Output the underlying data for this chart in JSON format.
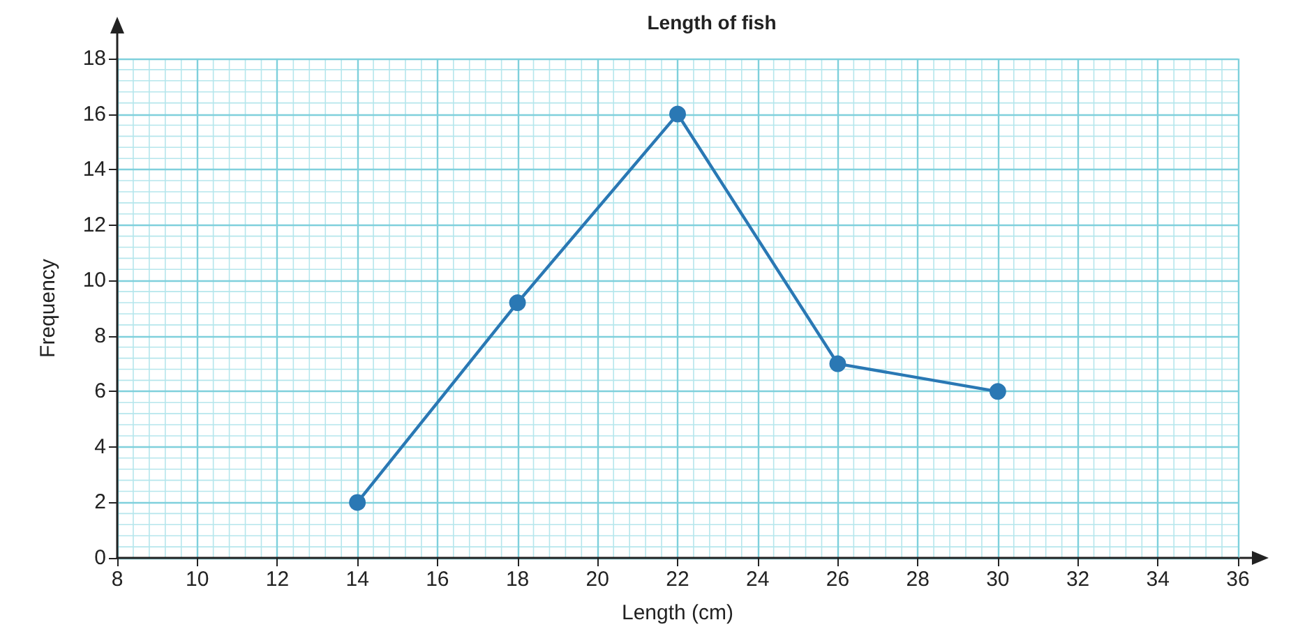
{
  "chart_data": {
    "type": "line",
    "title": "Length of fish",
    "xlabel": "Length (cm)",
    "ylabel": "Frequency",
    "x": [
      14,
      18,
      22,
      26,
      30
    ],
    "series": [
      {
        "color": "#2a78b4",
        "values": [
          2,
          9.2,
          16,
          7,
          6
        ]
      }
    ],
    "xlim": [
      8,
      36
    ],
    "xticks": [
      8,
      {
        "value": 8.4,
        "label": null
      },
      {
        "value": 8.8,
        "label": null
      },
      {
        "value": 9.2,
        "label": null
      },
      {
        "value": 9.6,
        "label": null
      },
      10,
      {
        "value": 10.4,
        "label": null
      },
      {
        "value": 10.8,
        "label": null
      },
      {
        "value": 11.2,
        "label": null
      },
      {
        "value": 11.6,
        "label": null
      },
      12,
      {
        "value": 12.4,
        "label": null
      },
      {
        "value": 12.8,
        "label": null
      },
      {
        "value": 13.2,
        "label": null
      },
      {
        "value": 13.6,
        "label": null
      },
      14,
      {
        "value": 14.4,
        "label": null
      },
      {
        "value": 14.8,
        "label": null
      },
      {
        "value": 15.2,
        "label": null
      },
      {
        "value": 15.6,
        "label": null
      },
      16,
      {
        "value": 16.4,
        "label": null
      },
      {
        "value": 16.8,
        "label": null
      },
      {
        "value": 17.2,
        "label": null
      },
      {
        "value": 17.6,
        "label": null
      },
      18,
      {
        "value": 18.4,
        "label": null
      },
      {
        "value": 18.8,
        "label": null
      },
      {
        "value": 19.2,
        "label": null
      },
      {
        "value": 19.6,
        "label": null
      },
      20,
      {
        "value": 20.4,
        "label": null
      },
      {
        "value": 20.8,
        "label": null
      },
      {
        "value": 21.2,
        "label": null
      },
      {
        "value": 21.6,
        "label": null
      },
      22,
      {
        "value": 22.4,
        "label": null
      },
      {
        "value": 22.8,
        "label": null
      },
      {
        "value": 23.2,
        "label": null
      },
      {
        "value": 23.6,
        "label": null
      },
      24,
      {
        "value": 24.4,
        "label": null
      },
      {
        "value": 24.8,
        "label": null
      },
      {
        "value": 25.2,
        "label": null
      },
      {
        "value": 25.6,
        "label": null
      },
      26,
      {
        "value": 26.4,
        "label": null
      },
      {
        "value": 26.8,
        "label": null
      },
      {
        "value": 27.2,
        "label": null
      },
      {
        "value": 27.6,
        "label": null
      },
      28,
      {
        "value": 28.4,
        "label": null
      },
      {
        "value": 28.8,
        "label": null
      },
      {
        "value": 29.2,
        "label": null
      },
      {
        "value": 29.6,
        "label": null
      },
      30,
      {
        "value": 30.4,
        "label": null
      },
      {
        "value": 30.8,
        "label": null
      },
      {
        "value": 31.2,
        "label": null
      },
      {
        "value": 31.6,
        "label": null
      },
      32,
      {
        "value": 32.4,
        "label": null
      },
      {
        "value": 32.8,
        "label": null
      },
      {
        "value": 33.2,
        "label": null
      },
      {
        "value": 33.6,
        "label": null
      },
      34,
      {
        "value": 34.4,
        "label": null
      },
      {
        "value": 34.8,
        "label": null
      },
      {
        "value": 35.2,
        "label": null
      },
      {
        "value": 35.6,
        "label": null
      },
      36
    ],
    "ylim": [
      0,
      18
    ],
    "yticks": [
      0,
      {
        "value": 0.4,
        "label": null
      },
      {
        "value": 0.8,
        "label": null
      },
      {
        "value": 1.2,
        "label": null
      },
      {
        "value": 1.6,
        "label": null
      },
      2,
      {
        "value": 2.4,
        "label": null
      },
      {
        "value": 2.8,
        "label": null
      },
      {
        "value": 3.2,
        "label": null
      },
      {
        "value": 3.6,
        "label": null
      },
      4,
      {
        "value": 4.4,
        "label": null
      },
      {
        "value": 4.8,
        "label": null
      },
      {
        "value": 5.2,
        "label": null
      },
      {
        "value": 5.6,
        "label": null
      },
      6,
      {
        "value": 6.4,
        "label": null
      },
      {
        "value": 6.8,
        "label": null
      },
      {
        "value": 7.2,
        "label": null
      },
      {
        "value": 7.6,
        "label": null
      },
      8,
      {
        "value": 8.4,
        "label": null
      },
      {
        "value": 8.8,
        "label": null
      },
      {
        "value": 9.2,
        "label": null
      },
      {
        "value": 9.6,
        "label": null
      },
      10,
      {
        "value": 10.4,
        "label": null
      },
      {
        "value": 10.8,
        "label": null
      },
      {
        "value": 11.2,
        "label": null
      },
      {
        "value": 11.6,
        "label": null
      },
      12,
      {
        "value": 12.4,
        "label": null
      },
      {
        "value": 12.8,
        "label": null
      },
      {
        "value": 13.2,
        "label": null
      },
      {
        "value": 13.6,
        "label": null
      },
      14,
      {
        "value": 14.4,
        "label": null
      },
      {
        "value": 14.8,
        "label": null
      },
      {
        "value": 15.2,
        "label": null
      },
      {
        "value": 15.6,
        "label": null
      },
      16,
      {
        "value": 16.4,
        "label": null
      },
      {
        "value": 16.8,
        "label": null
      },
      {
        "value": 17.2,
        "label": null
      },
      {
        "value": 17.6,
        "label": null
      },
      18
    ],
    "grid": true,
    "marker": "circle",
    "line_style": "solid"
  }
}
